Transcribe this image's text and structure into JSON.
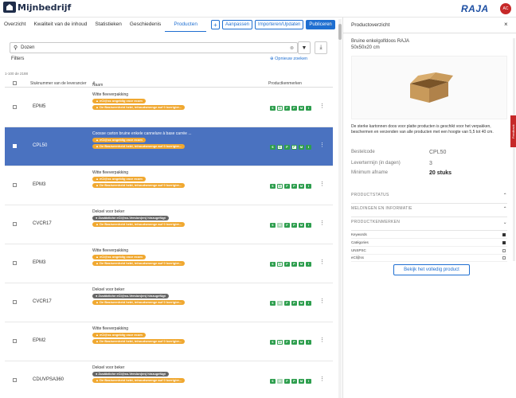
{
  "app": {
    "logo_text": "Mijnbedrijf",
    "brand": "RAJA",
    "avatar": "AC"
  },
  "tabs": [
    "Overzicht",
    "Kwaliteit van de inhoud",
    "Statistieken",
    "Geschiedenis",
    "Producten"
  ],
  "actions": {
    "plus": "+",
    "adjust": "Aanpassen",
    "import": "Importeren/Updaten",
    "publish": "Publiceren"
  },
  "search": {
    "value": "Dozen"
  },
  "filters": {
    "label": "Filters",
    "reset": "Opnieuw zoeken"
  },
  "count": "1-100 de 2188",
  "table": {
    "headers": {
      "sku": "Stuknummer van de leverancier",
      "name": "Naam",
      "props": "Productkenmerken"
    },
    "rows": [
      {
        "sku": "EPM5",
        "desc": "Witte fleeverpakking",
        "badges": [
          {
            "t": "eCl@ss ongeldig voor ecom",
            "c": "orange"
          },
          {
            "t": "De Basiseenheid hebt, inhoudsmenge auf 0 korrigier...",
            "c": "orange"
          }
        ],
        "props": [
          "g",
          "w",
          "g",
          "g",
          "g",
          "g"
        ]
      },
      {
        "sku": "CPL50",
        "desc": "Coosse carton bruine enkele cannelure à base carrée ...",
        "badges": [
          {
            "t": "eCl@ss ongeldig voor ecom",
            "c": "orange"
          },
          {
            "t": "De Basiseenheid hebt, inhoudsmenge auf 0 korrigier...",
            "c": "orange"
          }
        ],
        "props": [
          "g",
          "w",
          "g",
          "w",
          "g",
          "g"
        ],
        "selected": true
      },
      {
        "sku": "EPM3",
        "desc": "Witte fleeverpakking",
        "badges": [
          {
            "t": "eCl@ss ongeldig voor ecom",
            "c": "orange"
          },
          {
            "t": "De Basiseenheid hebt, inhoudsmenge auf 0 korrigier...",
            "c": "orange"
          }
        ],
        "props": [
          "g",
          "w",
          "g",
          "g",
          "g",
          "g"
        ]
      },
      {
        "sku": "CVCR17",
        "desc": "Deksel voor beker",
        "badges": [
          {
            "t": "Zusätzliche eCl@ss-Version(en) hinzugefügt",
            "c": "gray"
          },
          {
            "t": "De Basiseenheid hebt, inhoudsmenge auf 0 korrigier...",
            "c": "orange"
          }
        ],
        "props": [
          "g",
          "l",
          "g",
          "g",
          "g",
          "g"
        ]
      },
      {
        "sku": "EPM3",
        "desc": "Witte fleeverpakking",
        "badges": [
          {
            "t": "eCl@ss ongeldig voor ecom",
            "c": "orange"
          },
          {
            "t": "De Basiseenheid hebt, inhoudsmenge auf 0 korrigier...",
            "c": "orange"
          }
        ],
        "props": [
          "g",
          "w",
          "g",
          "g",
          "g",
          "g"
        ]
      },
      {
        "sku": "CVCR17",
        "desc": "Deksel voor beker",
        "badges": [
          {
            "t": "Zusätzliche eCl@ss-Version(en) hinzugefügt",
            "c": "gray"
          },
          {
            "t": "De Basiseenheid hebt, inhoudsmenge auf 0 korrigier...",
            "c": "orange"
          }
        ],
        "props": [
          "g",
          "l",
          "g",
          "g",
          "g",
          "g"
        ]
      },
      {
        "sku": "EPM2",
        "desc": "Witte fleeverpakking",
        "badges": [
          {
            "t": "eCl@ss ongeldig voor ecom",
            "c": "orange"
          },
          {
            "t": "De Basiseenheid hebt, inhoudsmenge auf 0 korrigier...",
            "c": "orange"
          }
        ],
        "props": [
          "g",
          "w",
          "g",
          "g",
          "g",
          "g"
        ]
      },
      {
        "sku": "CDUVPSA360",
        "desc": "Deksel voor beker",
        "badges": [
          {
            "t": "Zusätzliche eCl@ss-Version(en) hinzugefügt",
            "c": "gray"
          },
          {
            "t": "De Basiseenheid hebt, inhoudsmenge auf 0 korrigier...",
            "c": "orange"
          }
        ],
        "props": [
          "g",
          "l",
          "g",
          "g",
          "g",
          "g"
        ]
      }
    ]
  },
  "panel": {
    "title": "Productoverzicht",
    "close": "×",
    "product_name": "Bruine enkelgolfdoos RAJA",
    "product_dims": "50x50x20 cm",
    "description": "De sterke kartonnen doos voor platte producten is geschikt voor het verpakken, beschermen en verzenden van alle producten met een hoogte van 5,5 tot 40 cm.",
    "fields": [
      {
        "k": "Bestelcode",
        "v": "CPL50"
      },
      {
        "k": "Levertermijn (in dagen)",
        "v": "3"
      },
      {
        "k": "Minimum afname",
        "v": "20 stuks"
      }
    ],
    "sections": [
      "Productstatus",
      "Meldingen en informatie",
      "Productkenmerken"
    ],
    "kenmerken": [
      {
        "label": "Keywords",
        "checked": true
      },
      {
        "label": "Catégories",
        "checked": true
      },
      {
        "label": "UNSPSC",
        "checked": false
      },
      {
        "label": "eCl@ss",
        "checked": false
      }
    ],
    "view_button": "Bekijk het volledig product",
    "feedback": "Feedback"
  }
}
